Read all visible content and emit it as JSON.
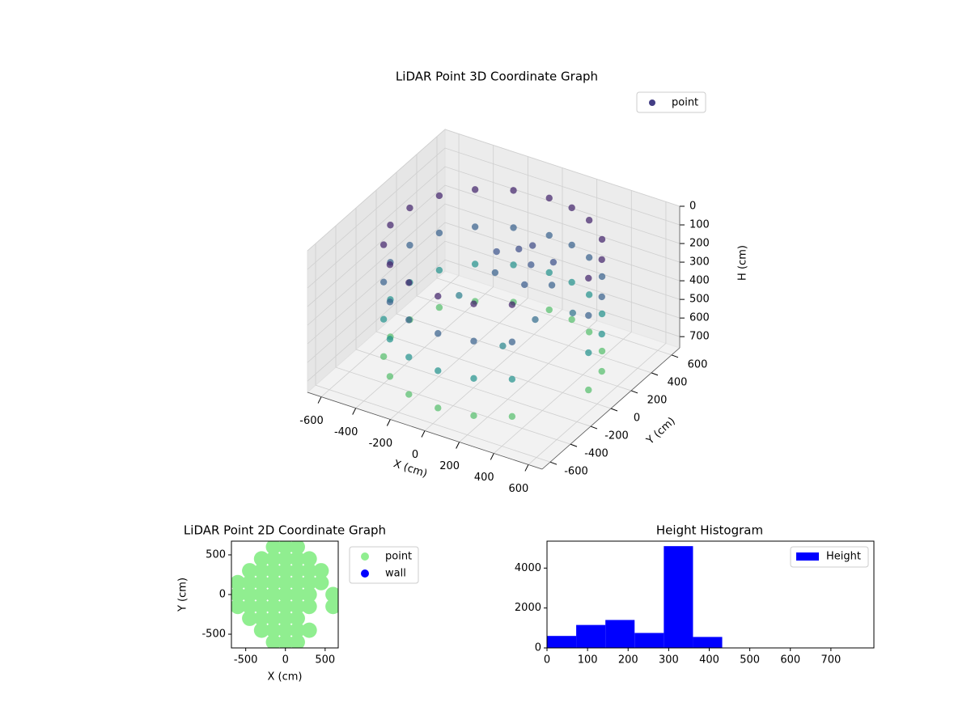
{
  "chart_data": [
    {
      "type": "scatter3d",
      "title": "LiDAR Point 3D Coordinate Graph",
      "xlabel": "X (cm)",
      "ylabel": "Y (cm)",
      "zlabel": "H (cm)",
      "xlim": [
        -680,
        680
      ],
      "ylim": [
        -680,
        680
      ],
      "zlim": [
        0,
        760
      ],
      "zinverted": true,
      "xticks": [
        -600,
        -400,
        -200,
        0,
        200,
        400,
        600
      ],
      "yticks": [
        -600,
        -400,
        -200,
        0,
        200,
        400,
        600
      ],
      "zticks": [
        0,
        100,
        200,
        300,
        400,
        500,
        600,
        700
      ],
      "colormap": [
        "#440154",
        "#3b528b",
        "#21918c",
        "#5ec962",
        "#fde725"
      ],
      "color_range": [
        0,
        1000
      ],
      "legend": "upper right",
      "series": [
        {
          "name": "point",
          "color": "#433e85",
          "x": [
            0,
            0,
            0,
            0,
            -188,
            -188,
            -188,
            -188,
            -354,
            -354,
            -354,
            -354,
            -476,
            -476,
            -476,
            -476,
            -542,
            -542,
            -542,
            -542,
            -542,
            -542,
            -542,
            -542,
            -476,
            -476,
            -476,
            -476,
            -354,
            -354,
            -354,
            -354,
            -188,
            -188,
            -188,
            -188,
            0,
            0,
            0,
            0,
            188,
            188,
            188,
            188,
            354,
            354,
            354,
            354,
            550,
            550,
            550,
            550,
            517,
            517,
            517,
            517,
            421,
            421,
            421,
            421,
            275,
            275,
            275,
            275,
            142,
            142,
            142,
            142,
            -100,
            0,
            100,
            200,
            -50,
            150,
            50,
            250,
            300,
            200,
            -200,
            400
          ],
          "y": [
            550,
            550,
            550,
            550,
            517,
            517,
            517,
            517,
            421,
            421,
            421,
            421,
            275,
            275,
            275,
            275,
            96,
            96,
            96,
            96,
            -96,
            -96,
            -96,
            -96,
            -275,
            -275,
            -275,
            -275,
            -421,
            -421,
            -421,
            -421,
            -517,
            -517,
            -517,
            -517,
            -550,
            -550,
            -550,
            -550,
            -517,
            -517,
            -517,
            -517,
            -421,
            -421,
            -421,
            -421,
            0,
            0,
            0,
            0,
            188,
            188,
            188,
            188,
            354,
            354,
            354,
            354,
            476,
            476,
            476,
            476,
            531,
            531,
            531,
            531,
            200,
            250,
            200,
            250,
            100,
            50,
            300,
            150,
            -100,
            -250,
            0,
            100
          ],
          "z": [
            100,
            300,
            500,
            700,
            100,
            300,
            500,
            700,
            100,
            300,
            500,
            700,
            100,
            300,
            500,
            700,
            100,
            300,
            500,
            700,
            100,
            300,
            500,
            700,
            100,
            300,
            500,
            700,
            100,
            300,
            500,
            700,
            100,
            300,
            500,
            700,
            100,
            300,
            500,
            700,
            100,
            300,
            500,
            700,
            100,
            300,
            500,
            700,
            100,
            300,
            500,
            700,
            100,
            300,
            500,
            700,
            100,
            300,
            500,
            700,
            100,
            300,
            500,
            700,
            100,
            300,
            500,
            700,
            250,
            230,
            260,
            240,
            300,
            280,
            220,
            300,
            350,
            450,
            420,
            380
          ]
        }
      ]
    },
    {
      "type": "scatter",
      "title": "LiDAR Point 2D Coordinate Graph",
      "xlabel": "X (cm)",
      "ylabel": "Y (cm)",
      "xlim": [
        -680,
        665
      ],
      "ylim": [
        -673,
        673
      ],
      "xticks": [
        -500,
        0,
        500
      ],
      "yticks": [
        -500,
        0,
        500
      ],
      "legend": "outside right",
      "series": [
        {
          "name": "point",
          "color": "#90ee90",
          "x": [
            -600,
            -600,
            -600,
            -450,
            -450,
            -450,
            -450,
            -450,
            -300,
            -300,
            -300,
            -300,
            -300,
            -300,
            -300,
            -150,
            -150,
            -150,
            -150,
            -150,
            -150,
            -150,
            -150,
            -150,
            0,
            0,
            0,
            0,
            0,
            0,
            0,
            0,
            0,
            150,
            150,
            150,
            150,
            150,
            150,
            150,
            150,
            150,
            300,
            300,
            300,
            300,
            300,
            300,
            450,
            450,
            600,
            600
          ],
          "y": [
            -150,
            0,
            150,
            -300,
            -150,
            0,
            150,
            300,
            -450,
            -300,
            -150,
            0,
            150,
            300,
            450,
            -600,
            -450,
            -300,
            -150,
            0,
            150,
            300,
            450,
            600,
            -600,
            -450,
            -300,
            -150,
            0,
            150,
            300,
            450,
            600,
            -600,
            -450,
            -300,
            -150,
            0,
            150,
            300,
            450,
            600,
            -450,
            -150,
            0,
            150,
            300,
            450,
            150,
            300,
            -150,
            0
          ]
        },
        {
          "name": "wall",
          "color": "#0000ff",
          "x": [],
          "y": []
        }
      ]
    },
    {
      "type": "histogram",
      "title": "Height Histogram",
      "xlim": [
        0,
        806
      ],
      "ylim": [
        0,
        5350
      ],
      "xticks": [
        0,
        100,
        200,
        300,
        400,
        500,
        600,
        700
      ],
      "yticks": [
        0,
        2000,
        4000
      ],
      "legend": "upper right",
      "bins": [
        0,
        72,
        144,
        216,
        288,
        360,
        432,
        504,
        576,
        648,
        720,
        792
      ],
      "series": [
        {
          "name": "Height",
          "color": "#0000ff",
          "values": [
            600,
            1150,
            1400,
            750,
            5100,
            550,
            0,
            0,
            0,
            0,
            0
          ]
        }
      ]
    }
  ]
}
